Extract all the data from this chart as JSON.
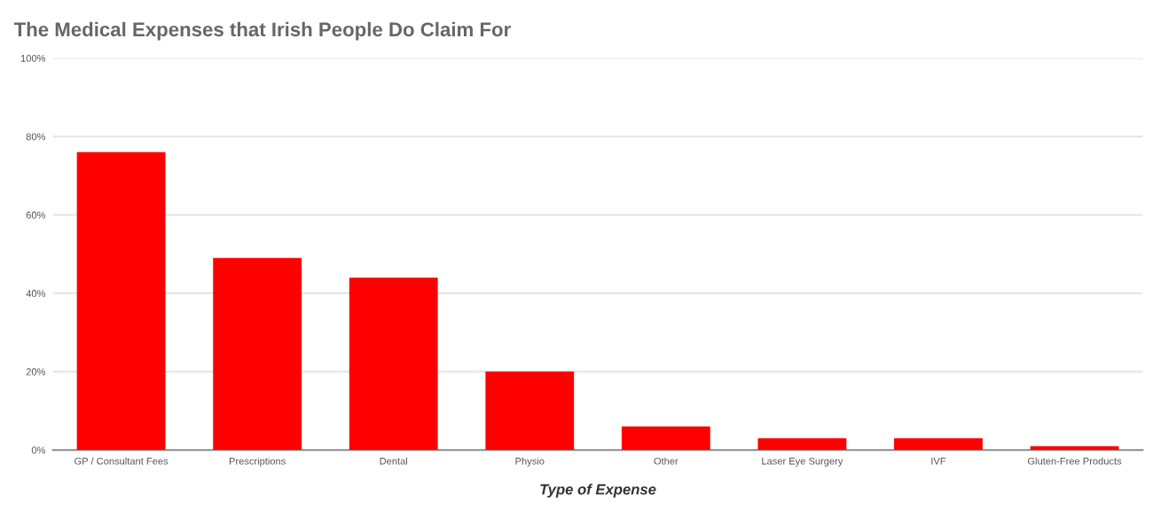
{
  "chart_data": {
    "type": "bar",
    "title": "The Medical Expenses that Irish People Do Claim For",
    "xlabel": "Type of Expense",
    "categories": [
      "GP / Consultant Fees",
      "Prescriptions",
      "Dental",
      "Physio",
      "Other",
      "Laser Eye Surgery",
      "IVF",
      "Gluten-Free Products"
    ],
    "values": [
      76,
      49,
      44,
      20,
      6,
      3,
      3,
      1
    ],
    "color": "#ff0000",
    "ylim": [
      0,
      100
    ],
    "yticks": [
      {
        "value": 0,
        "label": "0%"
      },
      {
        "value": 20,
        "label": "20%"
      },
      {
        "value": 40,
        "label": "40%"
      },
      {
        "value": 60,
        "label": "60%"
      },
      {
        "value": 80,
        "label": "80%"
      },
      {
        "value": 100,
        "label": "100%"
      }
    ],
    "grid": "y"
  }
}
